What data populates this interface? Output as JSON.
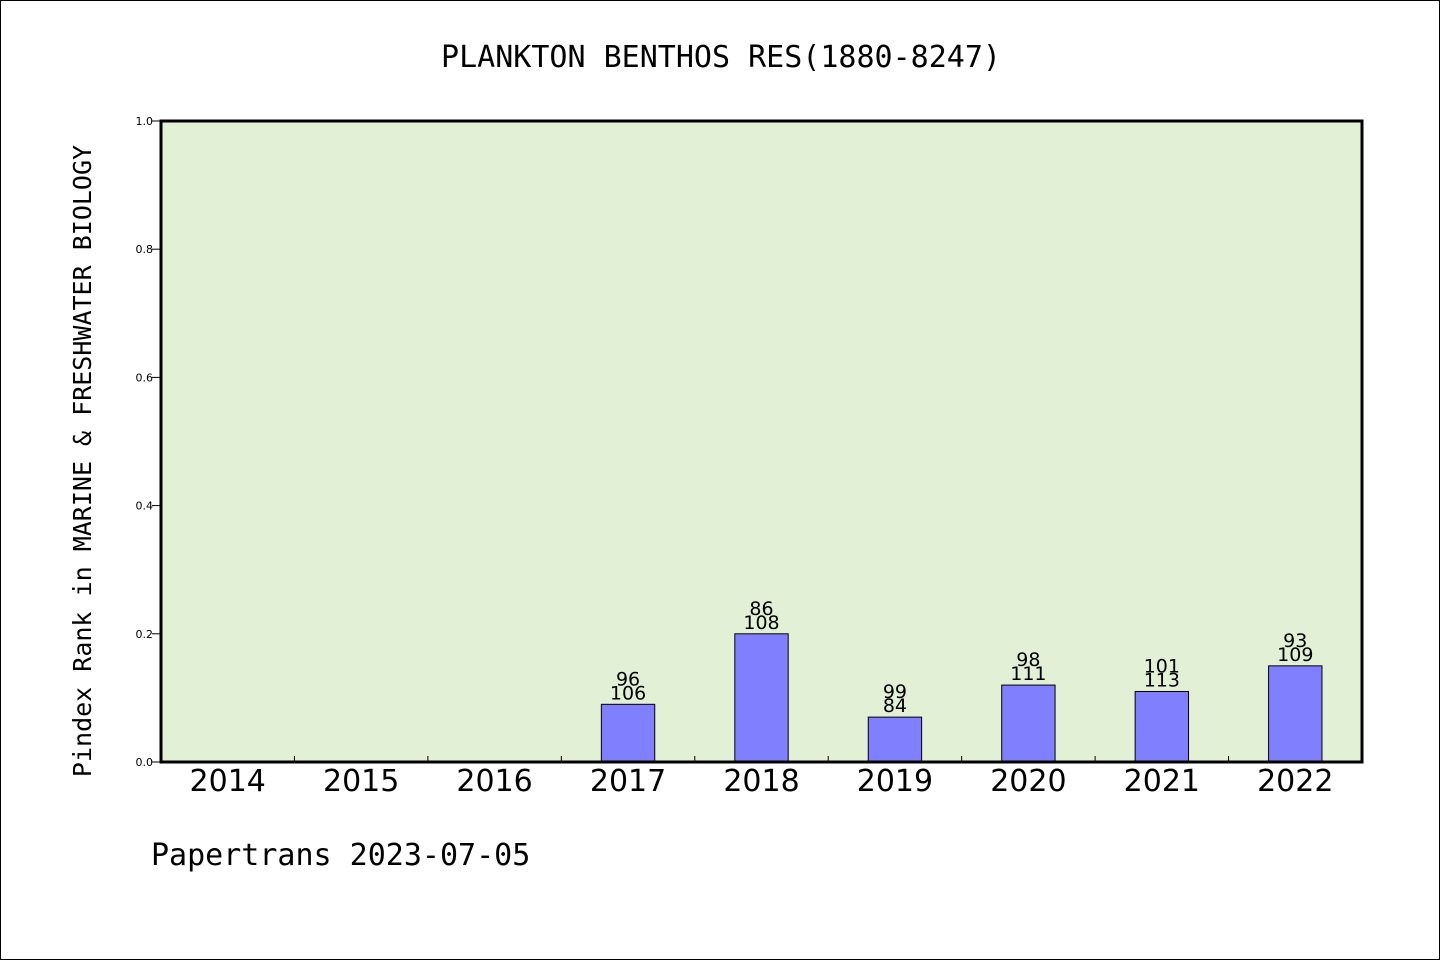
{
  "chart_data": {
    "type": "bar",
    "title": "PLANKTON BENTHOS RES(1880-8247)",
    "ylabel": "Pindex Rank in MARINE & FRESHWATER BIOLOGY",
    "xlabel": "",
    "categories": [
      "2014",
      "2015",
      "2016",
      "2017",
      "2018",
      "2019",
      "2020",
      "2021",
      "2022"
    ],
    "values": [
      null,
      null,
      null,
      0.09,
      0.2,
      0.07,
      0.12,
      0.11,
      0.15
    ],
    "bar_labels_top": [
      "",
      "",
      "",
      "96",
      "86",
      "99",
      "98",
      "101",
      "93"
    ],
    "bar_labels_bottom": [
      "",
      "",
      "",
      "106",
      "108",
      "84",
      "111",
      "113",
      "109"
    ],
    "ylim": [
      0.0,
      1.0
    ],
    "yticks": [
      "0.0",
      "0.2",
      "0.4",
      "0.6",
      "0.8",
      "1.0"
    ],
    "grid": false,
    "colors": {
      "plot_bg": "#e2f0d6",
      "bar_fill": "#8080ff",
      "bar_stroke": "#000000"
    }
  },
  "footer": "Papertrans 2023-07-05"
}
